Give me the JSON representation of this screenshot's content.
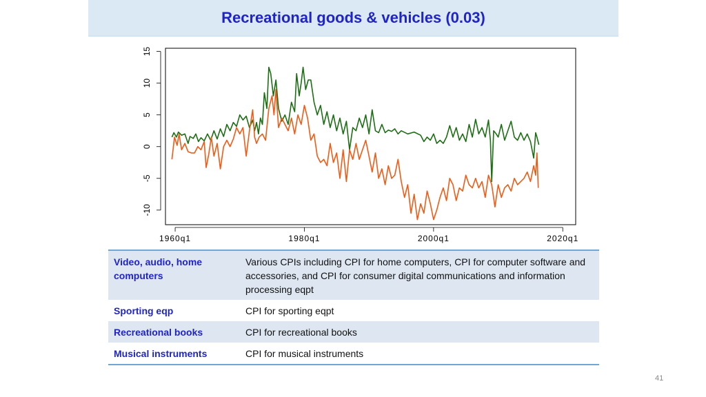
{
  "slide": {
    "title": "Recreational goods & vehicles (0.03)",
    "page_number": "41"
  },
  "table": {
    "rows": [
      {
        "category": "Video, audio, home computers",
        "description": "Various CPIs including CPI for home computers, CPI for computer software and accessories, and CPI for consumer digital communications and information processing eqpt"
      },
      {
        "category": "Sporting eqp",
        "description": "CPI for sporting eqpt"
      },
      {
        "category": "Recreational books",
        "description": "CPI for recreational books"
      },
      {
        "category": "Musical instruments",
        "description": "CPI for musical instruments"
      }
    ]
  },
  "chart_data": {
    "type": "line",
    "xlim": [
      1958.5,
      2022
    ],
    "ylim": [
      -12.3,
      15.5
    ],
    "x_ticks": [
      {
        "value": 1960,
        "label": "1960q1"
      },
      {
        "value": 1980,
        "label": "1980q1"
      },
      {
        "value": 2000,
        "label": "2000q1"
      },
      {
        "value": 2020,
        "label": "2020q1"
      }
    ],
    "y_ticks": [
      {
        "value": -10,
        "label": "-10"
      },
      {
        "value": -5,
        "label": "-5"
      },
      {
        "value": 0,
        "label": "0"
      },
      {
        "value": 5,
        "label": "5"
      },
      {
        "value": 10,
        "label": "10"
      },
      {
        "value": 15,
        "label": "15"
      }
    ],
    "grid": false,
    "series": [
      {
        "color": "#1b6e12",
        "points": [
          [
            1959.5,
            1.5
          ],
          [
            1959.8,
            2.2
          ],
          [
            1960.2,
            1.5
          ],
          [
            1960.5,
            2.3
          ],
          [
            1961,
            1.8
          ],
          [
            1961.5,
            2.0
          ],
          [
            1962,
            0.5
          ],
          [
            1962.3,
            1.6
          ],
          [
            1962.8,
            1.3
          ],
          [
            1963.2,
            2.0
          ],
          [
            1963.6,
            0.8
          ],
          [
            1964,
            1.4
          ],
          [
            1964.5,
            0.9
          ],
          [
            1965,
            2.0
          ],
          [
            1965.5,
            1.0
          ],
          [
            1966,
            2.5
          ],
          [
            1966.5,
            1.2
          ],
          [
            1967,
            2.8
          ],
          [
            1967.5,
            1.6
          ],
          [
            1968,
            3.5
          ],
          [
            1968.5,
            2.5
          ],
          [
            1969,
            3.8
          ],
          [
            1969.5,
            3.2
          ],
          [
            1970,
            5.0
          ],
          [
            1970.5,
            4.2
          ],
          [
            1971,
            4.8
          ],
          [
            1971.5,
            3.0
          ],
          [
            1972,
            4.2
          ],
          [
            1972.3,
            2.5
          ],
          [
            1972.6,
            3.8
          ],
          [
            1972.9,
            2.0
          ],
          [
            1973.2,
            4.5
          ],
          [
            1973.5,
            3.5
          ],
          [
            1973.8,
            8.5
          ],
          [
            1974.2,
            6.0
          ],
          [
            1974.5,
            12.5
          ],
          [
            1974.8,
            11.5
          ],
          [
            1975.2,
            8.0
          ],
          [
            1975.6,
            10.5
          ],
          [
            1976,
            6.0
          ],
          [
            1976.5,
            4.0
          ],
          [
            1977,
            5.0
          ],
          [
            1977.5,
            3.5
          ],
          [
            1978,
            7.0
          ],
          [
            1978.5,
            5.5
          ],
          [
            1978.8,
            11.5
          ],
          [
            1979.2,
            8.0
          ],
          [
            1979.5,
            10.0
          ],
          [
            1979.8,
            12.5
          ],
          [
            1980.2,
            9.0
          ],
          [
            1980.6,
            10.5
          ],
          [
            1981,
            10.5
          ],
          [
            1981.5,
            7.0
          ],
          [
            1982,
            5.0
          ],
          [
            1982.5,
            6.5
          ],
          [
            1983,
            3.5
          ],
          [
            1983.5,
            5.5
          ],
          [
            1984,
            3.0
          ],
          [
            1984.5,
            5.0
          ],
          [
            1985,
            2.5
          ],
          [
            1985.5,
            4.5
          ],
          [
            1986,
            2.0
          ],
          [
            1986.5,
            4.0
          ],
          [
            1987,
            -0.5
          ],
          [
            1987.5,
            3.0
          ],
          [
            1988,
            2.5
          ],
          [
            1988.5,
            4.5
          ],
          [
            1989,
            3.0
          ],
          [
            1989.5,
            5.0
          ],
          [
            1990,
            2.0
          ],
          [
            1990.5,
            5.8
          ],
          [
            1991,
            2.5
          ],
          [
            1991.5,
            2.2
          ],
          [
            1992,
            3.5
          ],
          [
            1992.5,
            2.2
          ],
          [
            1993,
            2.6
          ],
          [
            1993.5,
            2.4
          ],
          [
            1994,
            2.8
          ],
          [
            1994.5,
            2.0
          ],
          [
            1995,
            2.5
          ],
          [
            1996,
            2.0
          ],
          [
            1997,
            2.3
          ],
          [
            1998,
            1.8
          ],
          [
            1998.5,
            0.8
          ],
          [
            1999,
            1.5
          ],
          [
            1999.5,
            1.0
          ],
          [
            2000,
            2.0
          ],
          [
            2000.5,
            0.5
          ],
          [
            2001,
            1.0
          ],
          [
            2001.5,
            0.5
          ],
          [
            2002,
            1.5
          ],
          [
            2002.5,
            3.3
          ],
          [
            2003,
            1.5
          ],
          [
            2003.5,
            3.0
          ],
          [
            2004,
            1.0
          ],
          [
            2004.5,
            2.0
          ],
          [
            2005,
            0.8
          ],
          [
            2005.5,
            3.5
          ],
          [
            2006,
            1.5
          ],
          [
            2006.5,
            4.3
          ],
          [
            2007,
            2.0
          ],
          [
            2007.5,
            3.0
          ],
          [
            2008,
            1.5
          ],
          [
            2008.5,
            4.2
          ],
          [
            2008.8,
            1.0
          ],
          [
            2009,
            -5.5
          ],
          [
            2009.3,
            2.5
          ],
          [
            2009.7,
            2.0
          ],
          [
            2010,
            1.5
          ],
          [
            2010.5,
            3.5
          ],
          [
            2011,
            1.0
          ],
          [
            2011.5,
            2.5
          ],
          [
            2012,
            4.0
          ],
          [
            2012.5,
            1.5
          ],
          [
            2013,
            1.0
          ],
          [
            2013.5,
            2.2
          ],
          [
            2014,
            1.0
          ],
          [
            2014.5,
            2.0
          ],
          [
            2015,
            0.8
          ],
          [
            2015.5,
            -1.8
          ],
          [
            2015.8,
            2.2
          ],
          [
            2016,
            1.5
          ],
          [
            2016.3,
            0.3
          ]
        ]
      },
      {
        "color": "#f05a14",
        "points": [
          [
            1959.5,
            -2.0
          ],
          [
            1959.9,
            1.5
          ],
          [
            1960.3,
            0.2
          ],
          [
            1960.6,
            2.0
          ],
          [
            1961,
            -0.5
          ],
          [
            1961.5,
            0.5
          ],
          [
            1962,
            -0.8
          ],
          [
            1962.5,
            -1.0
          ],
          [
            1963,
            -1.0
          ],
          [
            1963.5,
            0.0
          ],
          [
            1964,
            -0.5
          ],
          [
            1964.5,
            0.8
          ],
          [
            1964.8,
            -3.3
          ],
          [
            1965.2,
            -1.2
          ],
          [
            1965.6,
            1.5
          ],
          [
            1966,
            -1.5
          ],
          [
            1966.5,
            0.5
          ],
          [
            1967,
            -3.5
          ],
          [
            1967.5,
            0.0
          ],
          [
            1968,
            1.0
          ],
          [
            1968.5,
            0.0
          ],
          [
            1969,
            1.2
          ],
          [
            1969.5,
            3.0
          ],
          [
            1970,
            2.0
          ],
          [
            1970.5,
            3.0
          ],
          [
            1971,
            -1.5
          ],
          [
            1971.5,
            2.5
          ],
          [
            1972,
            5.8
          ],
          [
            1972.3,
            1.5
          ],
          [
            1972.6,
            0.5
          ],
          [
            1973,
            1.5
          ],
          [
            1973.5,
            2.0
          ],
          [
            1974,
            1.0
          ],
          [
            1974.5,
            6.0
          ],
          [
            1975,
            8.0
          ],
          [
            1975.3,
            5.0
          ],
          [
            1975.6,
            9.0
          ],
          [
            1976,
            3.0
          ],
          [
            1976.5,
            4.5
          ],
          [
            1977,
            3.5
          ],
          [
            1977.5,
            2.5
          ],
          [
            1978,
            4.5
          ],
          [
            1978.5,
            2.0
          ],
          [
            1979,
            5.0
          ],
          [
            1979.5,
            3.5
          ],
          [
            1980,
            6.5
          ],
          [
            1980.5,
            4.5
          ],
          [
            1981,
            1.0
          ],
          [
            1981.5,
            2.0
          ],
          [
            1982,
            -1.5
          ],
          [
            1982.5,
            -2.5
          ],
          [
            1983,
            -2.0
          ],
          [
            1983.5,
            -3.0
          ],
          [
            1984,
            0.5
          ],
          [
            1984.5,
            -2.5
          ],
          [
            1985,
            -1.0
          ],
          [
            1985.5,
            -5.0
          ],
          [
            1986,
            -0.5
          ],
          [
            1986.5,
            -5.5
          ],
          [
            1987,
            -0.5
          ],
          [
            1987.5,
            -2.0
          ],
          [
            1988,
            0.5
          ],
          [
            1988.5,
            -2.0
          ],
          [
            1989,
            -0.5
          ],
          [
            1989.5,
            1.0
          ],
          [
            1990,
            -1.5
          ],
          [
            1990.5,
            -4.0
          ],
          [
            1991,
            -1.0
          ],
          [
            1991.5,
            -5.0
          ],
          [
            1992,
            -3.5
          ],
          [
            1992.5,
            -6.0
          ],
          [
            1993,
            -3.0
          ],
          [
            1993.5,
            -5.0
          ],
          [
            1994,
            -4.5
          ],
          [
            1994.5,
            -2.0
          ],
          [
            1995,
            -5.5
          ],
          [
            1995.5,
            -8.0
          ],
          [
            1996,
            -6.0
          ],
          [
            1996.5,
            -10.5
          ],
          [
            1997,
            -7.5
          ],
          [
            1997.5,
            -11.5
          ],
          [
            1998,
            -9.0
          ],
          [
            1998.5,
            -10.5
          ],
          [
            1999,
            -7.0
          ],
          [
            1999.5,
            -9.0
          ],
          [
            2000,
            -11.5
          ],
          [
            2000.5,
            -10.0
          ],
          [
            2001,
            -8.0
          ],
          [
            2001.5,
            -6.5
          ],
          [
            2002,
            -8.5
          ],
          [
            2002.5,
            -5.0
          ],
          [
            2003,
            -6.0
          ],
          [
            2003.5,
            -8.5
          ],
          [
            2004,
            -6.5
          ],
          [
            2004.5,
            -7.0
          ],
          [
            2005,
            -4.5
          ],
          [
            2005.5,
            -6.0
          ],
          [
            2006,
            -6.5
          ],
          [
            2006.5,
            -5.0
          ],
          [
            2007,
            -6.5
          ],
          [
            2007.5,
            -5.5
          ],
          [
            2008,
            -8.0
          ],
          [
            2008.5,
            -4.5
          ],
          [
            2009,
            -6.0
          ],
          [
            2009.5,
            -9.5
          ],
          [
            2010,
            -6.0
          ],
          [
            2010.5,
            -8.0
          ],
          [
            2011,
            -6.5
          ],
          [
            2011.5,
            -6.0
          ],
          [
            2012,
            -7.0
          ],
          [
            2012.5,
            -5.0
          ],
          [
            2013,
            -6.0
          ],
          [
            2013.5,
            -5.5
          ],
          [
            2014,
            -5.0
          ],
          [
            2014.5,
            -4.0
          ],
          [
            2015,
            -5.5
          ],
          [
            2015.5,
            -3.0
          ],
          [
            2015.8,
            -4.5
          ],
          [
            2016,
            -1.0
          ],
          [
            2016.2,
            -6.5
          ]
        ]
      }
    ]
  }
}
